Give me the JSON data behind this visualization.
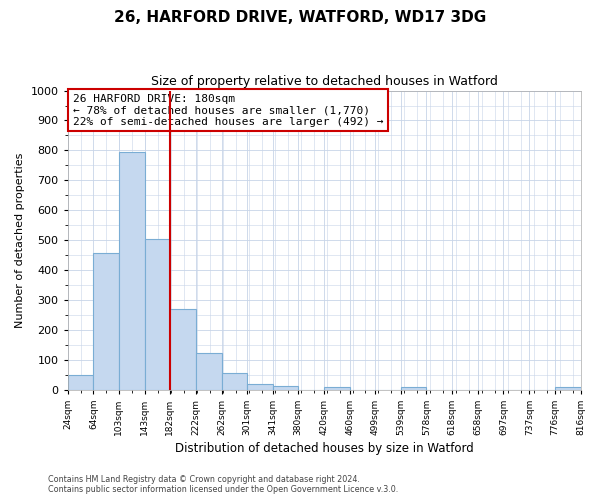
{
  "title": "26, HARFORD DRIVE, WATFORD, WD17 3DG",
  "subtitle": "Size of property relative to detached houses in Watford",
  "xlabel": "Distribution of detached houses by size in Watford",
  "ylabel": "Number of detached properties",
  "bar_left_edges": [
    24,
    64,
    103,
    143,
    182,
    222,
    262,
    301,
    341,
    380,
    420,
    460,
    499,
    539,
    578,
    618,
    658,
    697,
    737,
    776
  ],
  "bar_widths": [
    40,
    39,
    40,
    39,
    40,
    40,
    39,
    40,
    39,
    40,
    40,
    39,
    40,
    39,
    40,
    40,
    39,
    40,
    39,
    40
  ],
  "bar_heights": [
    50,
    457,
    793,
    505,
    271,
    122,
    55,
    20,
    13,
    0,
    10,
    0,
    0,
    8,
    0,
    0,
    0,
    0,
    0,
    10
  ],
  "tick_positions": [
    24,
    64,
    103,
    143,
    182,
    222,
    262,
    301,
    341,
    380,
    420,
    460,
    499,
    539,
    578,
    618,
    658,
    697,
    737,
    776,
    816
  ],
  "tick_labels": [
    "24sqm",
    "64sqm",
    "103sqm",
    "143sqm",
    "182sqm",
    "222sqm",
    "262sqm",
    "301sqm",
    "341sqm",
    "380sqm",
    "420sqm",
    "460sqm",
    "499sqm",
    "539sqm",
    "578sqm",
    "618sqm",
    "658sqm",
    "697sqm",
    "737sqm",
    "776sqm",
    "816sqm"
  ],
  "bar_color": "#c5d8ef",
  "bar_edgecolor": "#7aadd4",
  "vline_x": 182,
  "vline_color": "#cc0000",
  "ylim": [
    0,
    1000
  ],
  "xlim": [
    24,
    816
  ],
  "yticks": [
    0,
    100,
    200,
    300,
    400,
    500,
    600,
    700,
    800,
    900,
    1000
  ],
  "annotation_title": "26 HARFORD DRIVE: 180sqm",
  "annotation_line1": "← 78% of detached houses are smaller (1,770)",
  "annotation_line2": "22% of semi-detached houses are larger (492) →",
  "annotation_box_edgecolor": "#cc0000",
  "grid_color": "#c8d4e8",
  "bg_color": "#ffffff",
  "plot_bg_color": "#ffffff",
  "footer1": "Contains HM Land Registry data © Crown copyright and database right 2024.",
  "footer2": "Contains public sector information licensed under the Open Government Licence v.3.0."
}
